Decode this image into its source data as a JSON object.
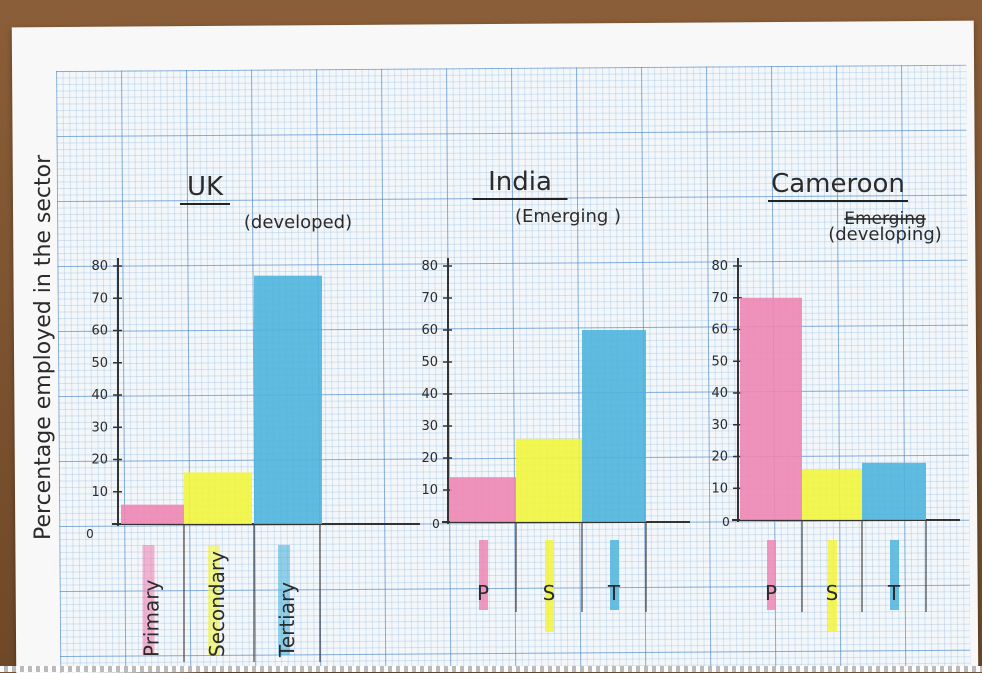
{
  "y_axis_label": "Percentage employed in the sector",
  "colors": {
    "primary": "#ee86b4",
    "secondary": "#f2f53e",
    "tertiary": "#4fb4dc",
    "axis": "#333333"
  },
  "chart_data": [
    {
      "type": "bar",
      "title": "UK",
      "subtitle": "(developed)",
      "categories": [
        "Primary",
        "Secondary",
        "Tertiary"
      ],
      "values": [
        6,
        16,
        77
      ],
      "ylim": [
        0,
        80
      ],
      "yticks": [
        "10",
        "20",
        "30",
        "40",
        "50",
        "60",
        "70",
        "80"
      ],
      "origin_label": "0",
      "ylabel": "Percentage employed in the sector"
    },
    {
      "type": "bar",
      "title": "India",
      "subtitle": "(Emerging )",
      "categories": [
        "P",
        "S",
        "T"
      ],
      "values": [
        14,
        26,
        60
      ],
      "ylim": [
        0,
        80
      ],
      "yticks": [
        "10",
        "20",
        "30",
        "40",
        "50",
        "60",
        "70",
        "80"
      ],
      "origin_label": "0"
    },
    {
      "type": "bar",
      "title": "Cameroon",
      "subtitle_struck": "Emerging",
      "subtitle": "(developing)",
      "categories": [
        "P",
        "S",
        "T"
      ],
      "values": [
        70,
        16,
        18
      ],
      "ylim": [
        0,
        80
      ],
      "yticks": [
        "10",
        "20",
        "30",
        "40",
        "50",
        "60",
        "70",
        "80"
      ],
      "origin_label": "0"
    }
  ]
}
